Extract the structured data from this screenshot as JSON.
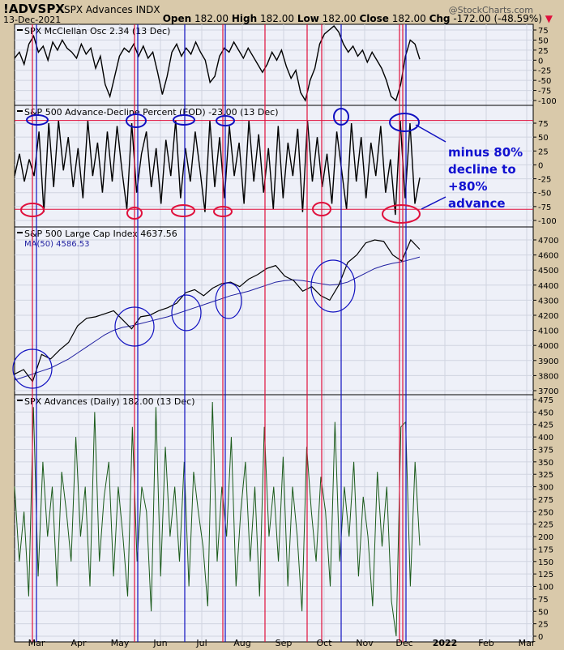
{
  "header": {
    "symbol": "!ADVSPX",
    "name": "SPX Advances INDX",
    "date": "13-Dec-2021",
    "brand": "@StockCharts.com",
    "open_label": "Open",
    "open": "182.00",
    "high_label": "High",
    "high": "182.00",
    "low_label": "Low",
    "low": "182.00",
    "close_label": "Close",
    "close": "182.00",
    "chg_label": "Chg",
    "chg": "-172.00 (-48.59%)"
  },
  "annotation": {
    "line1": "minus 80%",
    "line2": "decline to",
    "line3": "+80%",
    "line4": "advance"
  },
  "colors": {
    "bg": "#eef0f8",
    "grid": "#d0d4e0",
    "red": "#e0103c",
    "blue": "#1010c0",
    "price": "#000000",
    "ma": "#2020a0",
    "adv": "#1a5a1a"
  },
  "chart_data": [
    {
      "type": "line",
      "title": "SPX McClellan Osc 2.34 (13 Dec)",
      "ylim": [
        -110,
        90
      ],
      "yticks": [
        75,
        50,
        25,
        0,
        -25,
        -50,
        -75,
        -100
      ],
      "values": [
        5,
        20,
        -10,
        40,
        60,
        20,
        35,
        0,
        45,
        25,
        50,
        30,
        20,
        5,
        40,
        15,
        30,
        -20,
        10,
        -60,
        -90,
        -40,
        10,
        30,
        20,
        40,
        10,
        35,
        5,
        20,
        -30,
        -85,
        -40,
        20,
        40,
        10,
        30,
        15,
        45,
        20,
        0,
        -55,
        -40,
        10,
        30,
        20,
        45,
        25,
        5,
        30,
        10,
        -10,
        -30,
        -10,
        20,
        0,
        25,
        -15,
        -45,
        -25,
        -80,
        -100,
        -50,
        -20,
        40,
        65,
        75,
        85,
        70,
        40,
        20,
        35,
        10,
        25,
        -5,
        20,
        0,
        -20,
        -50,
        -90,
        -100,
        -60,
        10,
        50,
        40,
        2.34
      ]
    },
    {
      "type": "line",
      "title": "S&P 500 Advance-Decline Percent (EOD) -23.00 (13 Dec)",
      "ylim": [
        -110,
        90
      ],
      "yticks": [
        75,
        50,
        25,
        0,
        -25,
        -50,
        -75,
        -100
      ],
      "reference_lines": [
        80,
        -80
      ],
      "values": [
        -20,
        20,
        -30,
        10,
        -20,
        60,
        -85,
        75,
        -40,
        80,
        -10,
        50,
        -40,
        30,
        -60,
        80,
        -20,
        40,
        -50,
        60,
        -30,
        70,
        -10,
        -80,
        75,
        -50,
        20,
        60,
        -40,
        30,
        -70,
        45,
        -20,
        80,
        -60,
        30,
        -30,
        60,
        -10,
        -85,
        80,
        -40,
        50,
        -60,
        70,
        -20,
        40,
        -70,
        80,
        -30,
        55,
        -50,
        30,
        -80,
        70,
        -60,
        40,
        -20,
        65,
        -85,
        80,
        -30,
        50,
        -40,
        20,
        -70,
        60,
        -10,
        -80,
        75,
        -30,
        50,
        -60,
        40,
        -20,
        70,
        -50,
        10,
        -90,
        80,
        -60,
        75,
        -70,
        -23
      ]
    },
    {
      "type": "line",
      "title": "S&P 500 Large Cap Index 4637.56",
      "ylim": [
        3700,
        4750
      ],
      "yticks": [
        4700,
        4600,
        4500,
        4400,
        4300,
        4200,
        4100,
        4000,
        3900,
        3800,
        3700
      ],
      "series": [
        {
          "name": "S&P 500 Large Cap Index",
          "values": [
            3810,
            3840,
            3760,
            3940,
            3910,
            3970,
            4020,
            4130,
            4180,
            4190,
            4210,
            4230,
            4170,
            4110,
            4190,
            4200,
            4230,
            4250,
            4280,
            4350,
            4370,
            4330,
            4380,
            4410,
            4420,
            4390,
            4440,
            4470,
            4510,
            4530,
            4460,
            4430,
            4360,
            4390,
            4330,
            4300,
            4400,
            4550,
            4600,
            4680,
            4700,
            4690,
            4600,
            4560,
            4700,
            4637.56
          ]
        },
        {
          "name": "MA(50) 4586.53",
          "values": [
            3770,
            3790,
            3810,
            3830,
            3850,
            3880,
            3910,
            3950,
            3990,
            4030,
            4070,
            4100,
            4120,
            4130,
            4145,
            4160,
            4175,
            4190,
            4210,
            4230,
            4250,
            4270,
            4290,
            4310,
            4330,
            4345,
            4360,
            4380,
            4400,
            4420,
            4430,
            4435,
            4430,
            4420,
            4410,
            4400,
            4405,
            4420,
            4450,
            4480,
            4510,
            4530,
            4545,
            4555,
            4570,
            4586.53
          ]
        }
      ]
    },
    {
      "type": "line",
      "title": "SPX Advances (Daily) 182.00 (13 Dec)",
      "ylim": [
        0,
        480
      ],
      "yticks": [
        475,
        450,
        425,
        400,
        375,
        350,
        325,
        300,
        275,
        250,
        225,
        200,
        175,
        150,
        125,
        100,
        75,
        50,
        25,
        0
      ],
      "values": [
        300,
        150,
        250,
        80,
        460,
        120,
        350,
        200,
        300,
        100,
        330,
        250,
        150,
        400,
        200,
        300,
        100,
        450,
        150,
        280,
        350,
        120,
        300,
        200,
        80,
        420,
        150,
        300,
        250,
        50,
        460,
        120,
        380,
        200,
        300,
        150,
        350,
        100,
        330,
        250,
        180,
        60,
        470,
        150,
        300,
        200,
        400,
        100,
        250,
        350,
        150,
        300,
        80,
        420,
        200,
        300,
        150,
        360,
        100,
        300,
        200,
        50,
        380,
        250,
        150,
        320,
        250,
        100,
        430,
        150,
        300,
        200,
        350,
        120,
        280,
        200,
        60,
        330,
        180,
        300,
        70,
        0,
        420,
        430,
        100,
        350,
        182
      ]
    }
  ],
  "xaxis": {
    "ticks": [
      "Mar",
      "Apr",
      "May",
      "Jun",
      "Jul",
      "Aug",
      "Sep",
      "Oct",
      "Nov",
      "Dec",
      "2022",
      "Feb",
      "Mar"
    ]
  },
  "legend_ma": "MA(50) 4586.53"
}
